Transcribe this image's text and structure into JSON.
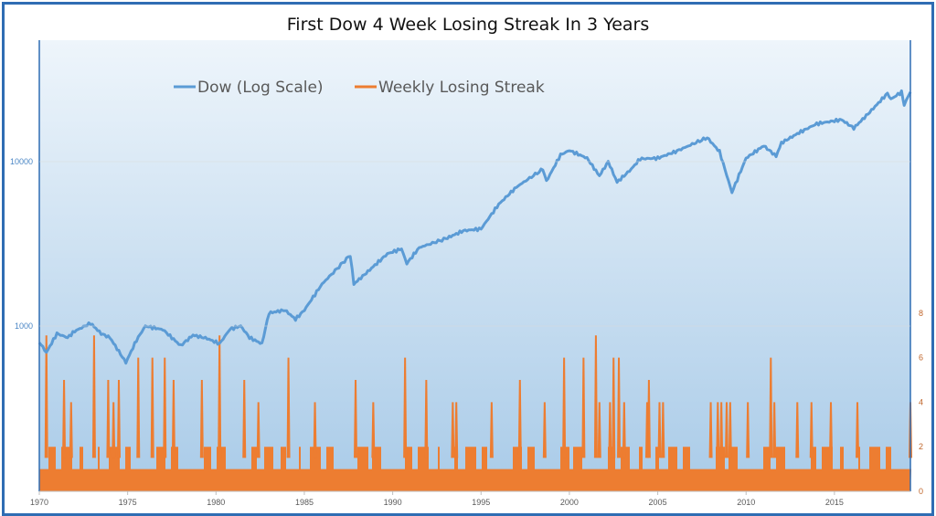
{
  "chart_data": [
    {
      "type": "line",
      "title": "First Dow 4 Week Losing Streak In 3 Years",
      "legend_position": "top-left",
      "grid": false,
      "x_ticks": [
        "1970",
        "1975",
        "1980",
        "1985",
        "1990",
        "1995",
        "2000",
        "2005",
        "2010",
        "2015"
      ],
      "xlim": [
        1970,
        2019.3
      ],
      "left_axis": {
        "scale": "log",
        "ticks": [
          "1000",
          "10000"
        ],
        "ylim": [
          400,
          45000
        ]
      },
      "right_axis": {
        "scale": "linear",
        "ticks": [
          "0",
          "2",
          "4",
          "6",
          "8"
        ],
        "ylim": [
          0,
          8
        ]
      },
      "series": [
        {
          "name": "Dow (Log Scale)",
          "color": "#5b9bd5",
          "axis": "left",
          "points": [
            [
              1970,
              800
            ],
            [
              1970.4,
              690
            ],
            [
              1971,
              900
            ],
            [
              1971.6,
              850
            ],
            [
              1972,
              930
            ],
            [
              1972.9,
              1040
            ],
            [
              1973.5,
              900
            ],
            [
              1974,
              850
            ],
            [
              1974.9,
              600
            ],
            [
              1975.5,
              820
            ],
            [
              1976,
              1000
            ],
            [
              1977,
              950
            ],
            [
              1978,
              760
            ],
            [
              1978.7,
              880
            ],
            [
              1979.5,
              840
            ],
            [
              1980.2,
              780
            ],
            [
              1980.8,
              960
            ],
            [
              1981.4,
              1000
            ],
            [
              1981.9,
              850
            ],
            [
              1982.6,
              780
            ],
            [
              1983,
              1200
            ],
            [
              1983.9,
              1250
            ],
            [
              1984.5,
              1100
            ],
            [
              1985,
              1250
            ],
            [
              1986,
              1800
            ],
            [
              1987.6,
              2700
            ],
            [
              1987.8,
              1800
            ],
            [
              1988.5,
              2100
            ],
            [
              1989.7,
              2750
            ],
            [
              1990.5,
              2950
            ],
            [
              1990.8,
              2400
            ],
            [
              1991.5,
              3000
            ],
            [
              1993,
              3400
            ],
            [
              1994,
              3800
            ],
            [
              1995,
              3900
            ],
            [
              1996,
              5500
            ],
            [
              1997,
              7000
            ],
            [
              1998.5,
              9000
            ],
            [
              1998.7,
              7600
            ],
            [
              1999.5,
              11000
            ],
            [
              2000,
              11700
            ],
            [
              2001,
              10500
            ],
            [
              2001.7,
              8200
            ],
            [
              2002.2,
              10000
            ],
            [
              2002.7,
              7500
            ],
            [
              2003.5,
              9000
            ],
            [
              2004,
              10400
            ],
            [
              2005,
              10500
            ],
            [
              2006,
              11500
            ],
            [
              2007.8,
              14000
            ],
            [
              2008.5,
              11500
            ],
            [
              2009.2,
              6500
            ],
            [
              2010,
              10500
            ],
            [
              2011,
              12500
            ],
            [
              2011.7,
              10800
            ],
            [
              2012,
              13000
            ],
            [
              2013,
              15000
            ],
            [
              2014,
              17000
            ],
            [
              2015.4,
              18000
            ],
            [
              2016.1,
              16000
            ],
            [
              2017,
              20000
            ],
            [
              2018,
              26000
            ],
            [
              2018.2,
              24000
            ],
            [
              2018.8,
              26500
            ],
            [
              2018.95,
              22000
            ],
            [
              2019.3,
              26500
            ]
          ]
        },
        {
          "name": "Weekly Losing Streak",
          "color": "#ed7d31",
          "axis": "right",
          "typical_range": [
            1,
            2
          ],
          "peaks": [
            [
              1970.4,
              7
            ],
            [
              1971.4,
              5
            ],
            [
              1971.8,
              4
            ],
            [
              1973.1,
              7
            ],
            [
              1973.9,
              5
            ],
            [
              1974.2,
              4
            ],
            [
              1974.5,
              5
            ],
            [
              1975.6,
              6
            ],
            [
              1976.4,
              6
            ],
            [
              1977.1,
              6
            ],
            [
              1977.6,
              5
            ],
            [
              1979.2,
              5
            ],
            [
              1980.2,
              7
            ],
            [
              1981.6,
              5
            ],
            [
              1982.4,
              4
            ],
            [
              1984.1,
              6
            ],
            [
              1985.6,
              4
            ],
            [
              1987.9,
              5
            ],
            [
              1988.9,
              4
            ],
            [
              1990.7,
              6
            ],
            [
              1991.9,
              5
            ],
            [
              1993.4,
              4
            ],
            [
              1993.6,
              4
            ],
            [
              1995.6,
              4
            ],
            [
              1997.2,
              5
            ],
            [
              1998.6,
              4
            ],
            [
              1999.7,
              6
            ],
            [
              2000.8,
              6
            ],
            [
              2001.5,
              7
            ],
            [
              2001.7,
              4
            ],
            [
              2002.3,
              4
            ],
            [
              2002.5,
              6
            ],
            [
              2002.8,
              6
            ],
            [
              2003.1,
              4
            ],
            [
              2004.4,
              4
            ],
            [
              2004.5,
              5
            ],
            [
              2005.1,
              4
            ],
            [
              2005.3,
              4
            ],
            [
              2008.0,
              4
            ],
            [
              2008.4,
              4
            ],
            [
              2008.6,
              4
            ],
            [
              2008.9,
              4
            ],
            [
              2009.1,
              4
            ],
            [
              2010.1,
              4
            ],
            [
              2011.4,
              6
            ],
            [
              2011.6,
              4
            ],
            [
              2012.9,
              4
            ],
            [
              2013.7,
              4
            ],
            [
              2014.8,
              4
            ],
            [
              2016.3,
              4
            ],
            [
              2019.3,
              4
            ]
          ]
        }
      ]
    }
  ]
}
